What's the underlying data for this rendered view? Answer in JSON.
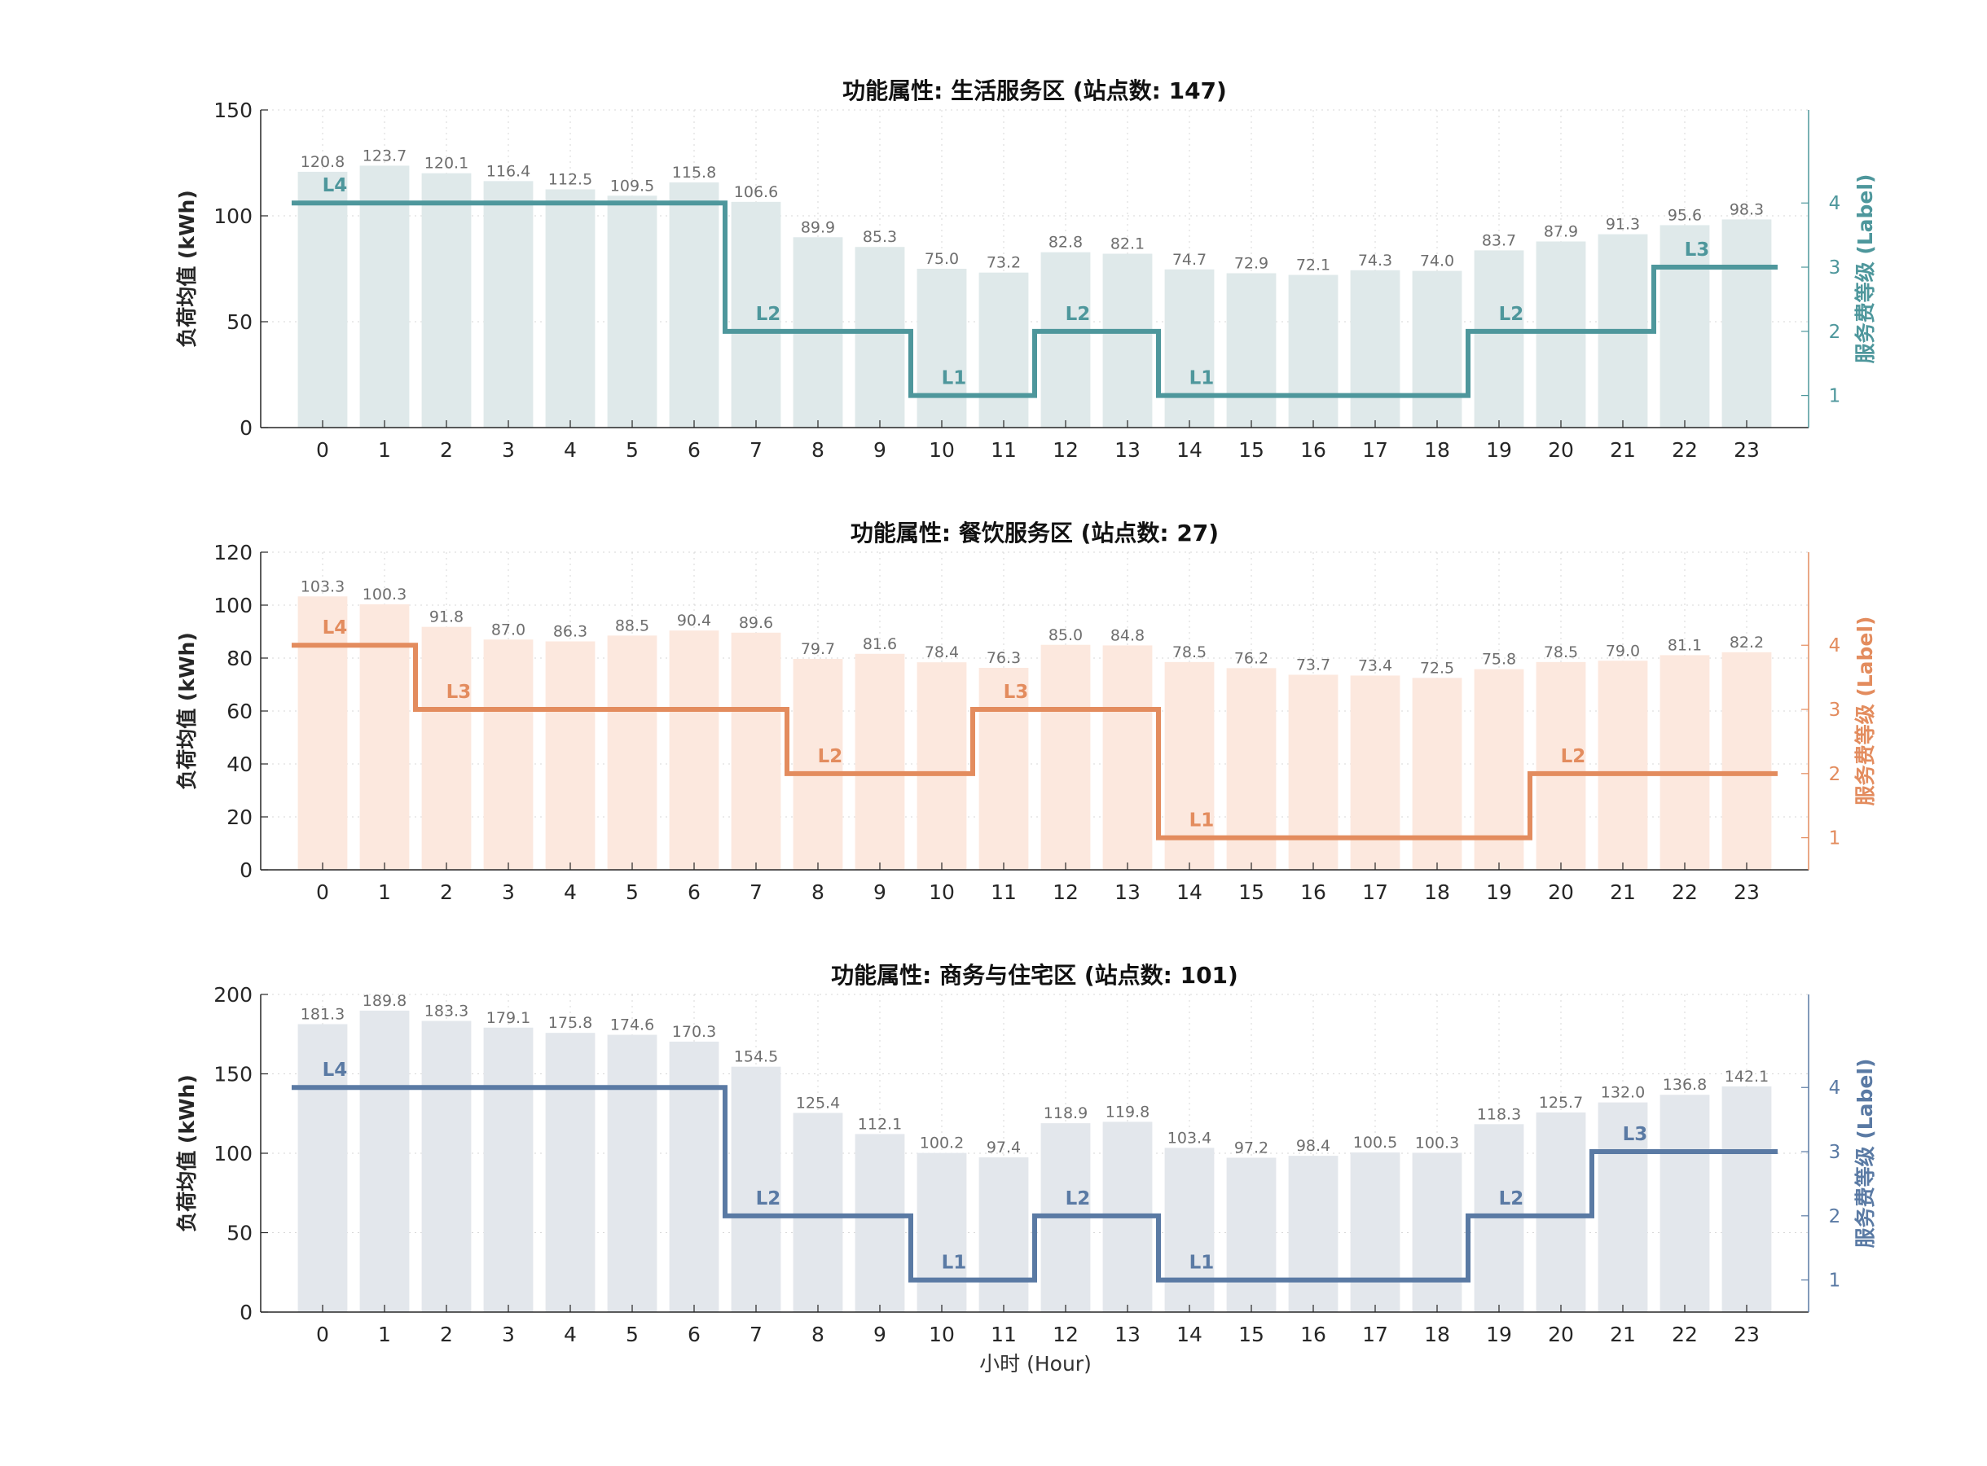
{
  "figure": {
    "xlabel": "小时 (Hour)"
  },
  "chart_data": [
    {
      "type": "bar",
      "title": "功能属性: 生活服务区 (站点数: 147)",
      "ylabel": "负荷均值 (kWh)",
      "y2label": "服务费等级 (Label)",
      "categories": [
        "0",
        "1",
        "2",
        "3",
        "4",
        "5",
        "6",
        "7",
        "8",
        "9",
        "10",
        "11",
        "12",
        "13",
        "14",
        "15",
        "16",
        "17",
        "18",
        "19",
        "20",
        "21",
        "22",
        "23"
      ],
      "values": [
        120.8,
        123.7,
        120.1,
        116.4,
        112.5,
        109.5,
        115.8,
        106.6,
        89.9,
        85.3,
        75.0,
        73.2,
        82.8,
        82.1,
        74.7,
        72.9,
        72.1,
        74.3,
        74.0,
        83.7,
        87.9,
        91.3,
        95.6,
        98.3
      ],
      "value_labels": [
        "120.8",
        "123.7",
        "120.1",
        "116.4",
        "112.5",
        "109.5",
        "115.8",
        "106.6",
        "89.9",
        "85.3",
        "75.0",
        "73.2",
        "82.8",
        "82.1",
        "74.7",
        "72.9",
        "72.1",
        "74.3",
        "74.0",
        "83.7",
        "87.9",
        "91.3",
        "95.6",
        "98.3"
      ],
      "ylim": [
        0,
        150
      ],
      "yticks": [
        0,
        50,
        100,
        150
      ],
      "y2lim": [
        0.5,
        5.45
      ],
      "y2ticks": [
        1,
        2,
        3,
        4
      ],
      "levels": [
        4,
        4,
        4,
        4,
        4,
        4,
        4,
        2,
        2,
        2,
        1,
        1,
        2,
        2,
        1,
        1,
        1,
        1,
        1,
        2,
        2,
        2,
        3,
        3
      ],
      "level_annotations": [
        {
          "hour": 0,
          "text": "L4"
        },
        {
          "hour": 7,
          "text": "L2"
        },
        {
          "hour": 10,
          "text": "L1"
        },
        {
          "hour": 12,
          "text": "L2"
        },
        {
          "hour": 14,
          "text": "L1"
        },
        {
          "hour": 19,
          "text": "L2"
        },
        {
          "hour": 22,
          "text": "L3"
        }
      ],
      "colors": {
        "bar": "#dfe9ea",
        "line": "#4e979c",
        "axis2": "#4e979c",
        "value_label": "#6e6e6e"
      }
    },
    {
      "type": "bar",
      "title": "功能属性: 餐饮服务区 (站点数: 27)",
      "ylabel": "负荷均值 (kWh)",
      "y2label": "服务费等级 (Label)",
      "categories": [
        "0",
        "1",
        "2",
        "3",
        "4",
        "5",
        "6",
        "7",
        "8",
        "9",
        "10",
        "11",
        "12",
        "13",
        "14",
        "15",
        "16",
        "17",
        "18",
        "19",
        "20",
        "21",
        "22",
        "23"
      ],
      "values": [
        103.3,
        100.3,
        91.8,
        87.0,
        86.3,
        88.5,
        90.4,
        89.6,
        79.7,
        81.6,
        78.4,
        76.3,
        85.0,
        84.8,
        78.5,
        76.2,
        73.7,
        73.4,
        72.5,
        75.8,
        78.5,
        79.0,
        81.1,
        82.2
      ],
      "value_labels": [
        "103.3",
        "100.3",
        "91.8",
        "87.0",
        "86.3",
        "88.5",
        "90.4",
        "89.6",
        "79.7",
        "81.6",
        "78.4",
        "76.3",
        "85.0",
        "84.8",
        "78.5",
        "76.2",
        "73.7",
        "73.4",
        "72.5",
        "75.8",
        "78.5",
        "79.0",
        "81.1",
        "82.2"
      ],
      "ylim": [
        0,
        120
      ],
      "yticks": [
        0,
        20,
        40,
        60,
        80,
        100,
        120
      ],
      "y2lim": [
        0.5,
        5.45
      ],
      "y2ticks": [
        1,
        2,
        3,
        4
      ],
      "levels": [
        4,
        4,
        3,
        3,
        3,
        3,
        3,
        3,
        2,
        2,
        2,
        3,
        3,
        3,
        1,
        1,
        1,
        1,
        1,
        1,
        2,
        2,
        2,
        2
      ],
      "level_annotations": [
        {
          "hour": 0,
          "text": "L4"
        },
        {
          "hour": 2,
          "text": "L3"
        },
        {
          "hour": 8,
          "text": "L2"
        },
        {
          "hour": 11,
          "text": "L3"
        },
        {
          "hour": 14,
          "text": "L1"
        },
        {
          "hour": 20,
          "text": "L2"
        }
      ],
      "colors": {
        "bar": "#fce8de",
        "line": "#e38c5e",
        "axis2": "#e38c5e",
        "value_label": "#6e6e6e"
      }
    },
    {
      "type": "bar",
      "title": "功能属性: 商务与住宅区 (站点数: 101)",
      "ylabel": "负荷均值 (kWh)",
      "y2label": "服务费等级 (Label)",
      "categories": [
        "0",
        "1",
        "2",
        "3",
        "4",
        "5",
        "6",
        "7",
        "8",
        "9",
        "10",
        "11",
        "12",
        "13",
        "14",
        "15",
        "16",
        "17",
        "18",
        "19",
        "20",
        "21",
        "22",
        "23"
      ],
      "values": [
        181.3,
        189.8,
        183.3,
        179.1,
        175.8,
        174.6,
        170.3,
        154.5,
        125.4,
        112.1,
        100.2,
        97.4,
        118.9,
        119.8,
        103.4,
        97.2,
        98.4,
        100.5,
        100.3,
        118.3,
        125.7,
        132.0,
        136.8,
        142.1
      ],
      "value_labels": [
        "181.3",
        "189.8",
        "183.3",
        "179.1",
        "175.8",
        "174.6",
        "170.3",
        "154.5",
        "125.4",
        "112.1",
        "100.2",
        "97.4",
        "118.9",
        "119.8",
        "103.4",
        "97.2",
        "98.4",
        "100.5",
        "100.3",
        "118.3",
        "125.7",
        "132.0",
        "136.8",
        "142.1"
      ],
      "ylim": [
        0,
        200
      ],
      "yticks": [
        0,
        50,
        100,
        150,
        200
      ],
      "y2lim": [
        0.5,
        5.45
      ],
      "y2ticks": [
        1,
        2,
        3,
        4
      ],
      "levels": [
        4,
        4,
        4,
        4,
        4,
        4,
        4,
        2,
        2,
        2,
        1,
        1,
        2,
        2,
        1,
        1,
        1,
        1,
        1,
        2,
        2,
        3,
        3,
        3
      ],
      "level_annotations": [
        {
          "hour": 0,
          "text": "L4"
        },
        {
          "hour": 7,
          "text": "L2"
        },
        {
          "hour": 10,
          "text": "L1"
        },
        {
          "hour": 12,
          "text": "L2"
        },
        {
          "hour": 14,
          "text": "L1"
        },
        {
          "hour": 19,
          "text": "L2"
        },
        {
          "hour": 21,
          "text": "L3"
        }
      ],
      "colors": {
        "bar": "#e3e7ec",
        "line": "#5a7aa4",
        "axis2": "#5a7aa4",
        "value_label": "#6e6e6e"
      }
    }
  ]
}
